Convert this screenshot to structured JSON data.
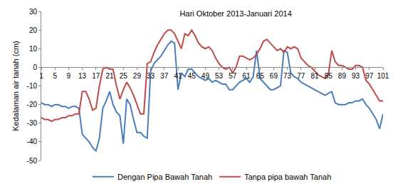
{
  "chart_data": {
    "type": "line",
    "title": "Hari Oktober 2013-Januari 2014",
    "y_label": "Kedalaman air tanah (cm)",
    "x": [
      1,
      2,
      3,
      4,
      5,
      6,
      7,
      8,
      9,
      10,
      11,
      12,
      13,
      14,
      15,
      16,
      17,
      18,
      19,
      20,
      21,
      22,
      23,
      24,
      25,
      26,
      27,
      28,
      29,
      30,
      31,
      32,
      33,
      34,
      35,
      36,
      37,
      38,
      39,
      40,
      41,
      42,
      43,
      44,
      45,
      46,
      47,
      48,
      49,
      50,
      51,
      52,
      53,
      54,
      55,
      56,
      57,
      58,
      59,
      60,
      61,
      62,
      63,
      64,
      65,
      66,
      67,
      68,
      69,
      70,
      71,
      72,
      73,
      74,
      75,
      76,
      77,
      78,
      79,
      80,
      81,
      82,
      83,
      84,
      85,
      86,
      87,
      88,
      89,
      90,
      91,
      92,
      93,
      94,
      95,
      96,
      97,
      98,
      99,
      100,
      101
    ],
    "xlim": [
      1,
      101
    ],
    "xticks": [
      1,
      5,
      9,
      13,
      17,
      21,
      25,
      29,
      33,
      37,
      41,
      45,
      49,
      53,
      57,
      61,
      65,
      69,
      73,
      77,
      81,
      85,
      89,
      93,
      97,
      101
    ],
    "ylim": [
      -50,
      30
    ],
    "yticks": [
      -50,
      -40,
      -30,
      -20,
      -10,
      0,
      10,
      20,
      30
    ],
    "grid": false,
    "legend": "bottom",
    "series": [
      {
        "name": "Dengan Pipa Bawah Tanah",
        "color": "#4a7ebb",
        "values": [
          -19,
          -20,
          -20,
          -21,
          -20,
          -20,
          -21,
          -21,
          -22,
          -21,
          -21,
          -22,
          -36,
          -38,
          -40,
          -43,
          -45,
          -38,
          -22,
          -18,
          -13,
          -20,
          -24,
          -26,
          -41,
          -17,
          -20,
          -28,
          -35,
          -35,
          -37,
          -38,
          -2,
          2,
          4,
          6,
          9,
          12,
          14,
          13,
          -12,
          -3,
          -5,
          -1,
          -1,
          -3,
          -5,
          -6,
          -7,
          -6,
          -8,
          -7,
          -8,
          -9,
          -9,
          -12,
          -12,
          -10,
          -8,
          -7,
          -6,
          -8,
          -5,
          9,
          -6,
          -8,
          -10,
          -12,
          -12,
          -11,
          -10,
          9,
          8,
          -3,
          -5,
          -6,
          -8,
          -9,
          -10,
          -11,
          -12,
          -13,
          -14,
          -15,
          -14,
          -13,
          -19,
          -20,
          -20,
          -20,
          -19,
          -19,
          -18,
          -18,
          -17,
          -20,
          -22,
          -25,
          -28,
          -33,
          -25
        ]
      },
      {
        "name": "Tanpa pipa bawah Tanah",
        "color": "#be4b48",
        "values": [
          -27,
          -28,
          -28,
          -29,
          -28,
          -28,
          -27,
          -27,
          -26,
          -26,
          -25,
          -25,
          -13,
          -13,
          -17,
          -23,
          -22,
          -10,
          -1,
          0,
          -1,
          -1,
          -10,
          -17,
          -12,
          -8,
          -11,
          -15,
          -20,
          -25,
          -25,
          2,
          3,
          8,
          12,
          15,
          18,
          20,
          20,
          18,
          14,
          10,
          18,
          17,
          20,
          17,
          13,
          11,
          10,
          11,
          9,
          5,
          2,
          0,
          -1,
          0,
          -3,
          0,
          6,
          6,
          5,
          4,
          5,
          7,
          10,
          14,
          15,
          13,
          11,
          9,
          10,
          8,
          11,
          10,
          11,
          10,
          5,
          3,
          1,
          0,
          -2,
          -4,
          -5,
          -6,
          -4,
          9,
          3,
          1,
          1,
          0,
          -1,
          -1,
          1,
          1,
          0,
          -7,
          -9,
          -12,
          -15,
          -18,
          -18
        ]
      }
    ]
  }
}
